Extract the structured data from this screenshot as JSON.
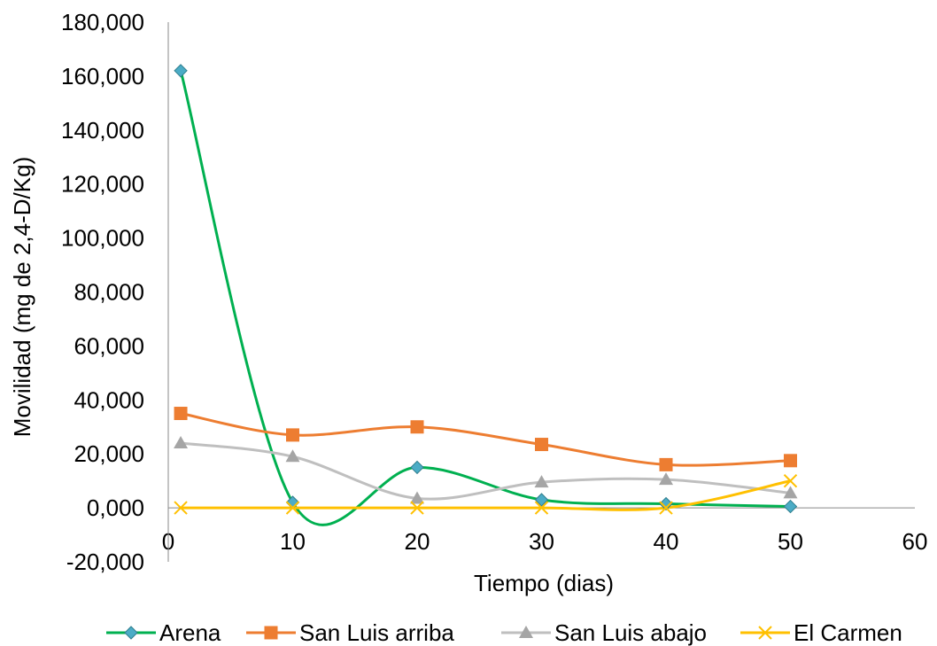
{
  "chart_data": {
    "type": "scatter",
    "xlabel": "Tiempo (dias)",
    "ylabel": "Movilidad (mg de 2,4-D/Kg)",
    "xlim": [
      0,
      60
    ],
    "ylim": [
      -20000,
      180000
    ],
    "x_ticks": [
      0,
      10,
      20,
      30,
      40,
      50,
      60
    ],
    "x_tick_labels": [
      "0",
      "10",
      "20",
      "30",
      "40",
      "50",
      "60"
    ],
    "y_ticks": [
      -20000,
      0,
      20000,
      40000,
      60000,
      80000,
      100000,
      120000,
      140000,
      160000,
      180000
    ],
    "y_tick_labels": [
      "-20,000",
      "0,000",
      "20,000",
      "40,000",
      "60,000",
      "80,000",
      "100,000",
      "120,000",
      "140,000",
      "160,000",
      "180,000"
    ],
    "grid": false,
    "smooth_lines": true,
    "legend_position": "bottom",
    "series": [
      {
        "name": "Arena",
        "color": "#00B050",
        "marker": "diamond",
        "marker_color": "#4BACC6",
        "x": [
          1,
          10,
          20,
          30,
          40,
          50
        ],
        "y": [
          162000,
          2000,
          15000,
          3000,
          1500,
          500
        ]
      },
      {
        "name": "San Luis arriba",
        "color": "#ED7D31",
        "marker": "square",
        "marker_color": "#ED7D31",
        "x": [
          1,
          10,
          20,
          30,
          40,
          50
        ],
        "y": [
          35000,
          27000,
          30000,
          23500,
          16000,
          17500
        ]
      },
      {
        "name": "San Luis abajo",
        "color": "#BFBFBF",
        "marker": "triangle",
        "marker_color": "#A5A5A5",
        "x": [
          1,
          10,
          20,
          30,
          40,
          50
        ],
        "y": [
          24000,
          19000,
          3500,
          9500,
          10500,
          5500
        ]
      },
      {
        "name": "El Carmen",
        "color": "#FFC000",
        "marker": "x",
        "marker_color": "#FFC000",
        "x": [
          1,
          10,
          20,
          30,
          40,
          50
        ],
        "y": [
          0,
          0,
          0,
          0,
          0,
          10000
        ]
      }
    ]
  }
}
